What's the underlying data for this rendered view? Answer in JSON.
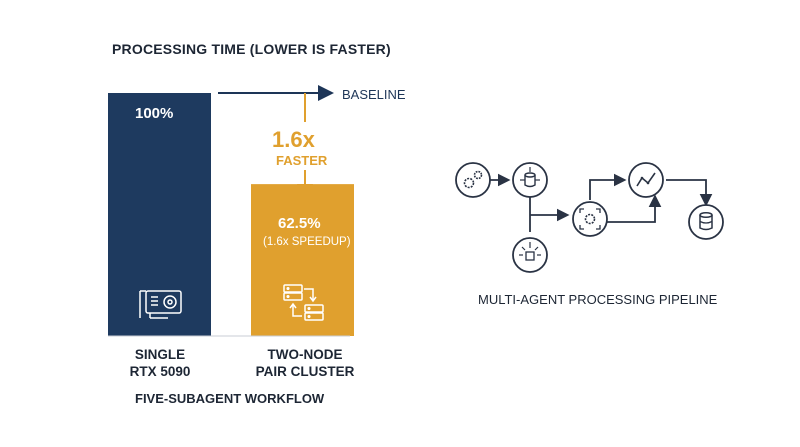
{
  "chart_data": {
    "type": "bar",
    "title": "PROCESSING TIME (LOWER IS FASTER)",
    "categories": [
      "SINGLE\nRTX 5090",
      "TWO-NODE\nPAIR CLUSTER"
    ],
    "values": [
      100,
      62.5
    ],
    "ylim": [
      0,
      100
    ],
    "data_labels": [
      "100%",
      "62.5%"
    ],
    "data_sublabels": [
      "",
      "(1.6x SPEEDUP)"
    ],
    "colors": [
      "#1e3a5f",
      "#e0a02e"
    ],
    "xlabel": "FIVE-SUBAGENT WORKFLOW",
    "ylabel": "",
    "grid": false,
    "annotations": {
      "baseline": "BASELINE",
      "speedup_value": "1.6x",
      "speedup_word": "FASTER"
    }
  },
  "icons": {
    "bar0": "gpu-card-icon",
    "bar1": "server-pair-icon"
  },
  "pipeline": {
    "label": "MULTI-AGENT PROCESSING PIPELINE",
    "nodes": [
      "gears-icon",
      "database-network-icon",
      "broadcast-chart-icon",
      "target-gear-icon",
      "line-graph-icon",
      "database-icon"
    ]
  }
}
